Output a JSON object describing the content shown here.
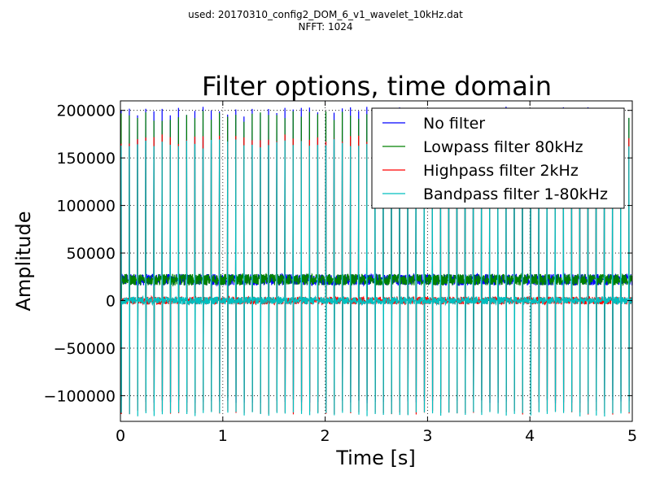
{
  "figure": {
    "suptitle_line1": "used: 20170310_config2_DOM_6_v1_wavelet_10kHz.dat",
    "suptitle_line2": "NFFT: 1024"
  },
  "chart_data": {
    "type": "line",
    "title": "Filter options, time domain",
    "xlabel": "Time [s]",
    "ylabel": "Amplitude",
    "xlim": [
      0,
      5
    ],
    "ylim": [
      -127000,
      210000
    ],
    "xticks": [
      0,
      1,
      2,
      3,
      4,
      5
    ],
    "xtick_labels": [
      "0",
      "1",
      "2",
      "3",
      "4",
      "5"
    ],
    "yticks": [
      200000,
      150000,
      100000,
      50000,
      0,
      -50000,
      -100000
    ],
    "ytick_labels": [
      "200000",
      "150000",
      "100000",
      "50000",
      "0",
      "−50000",
      "−100000"
    ],
    "grid": true,
    "legend_position": "top-right",
    "pulse_rate_hz": 12.5,
    "series": [
      {
        "name": "No filter",
        "color": "#0000ff",
        "baseline": 22000,
        "noise": 6000,
        "peak": 204000,
        "trough": -108000
      },
      {
        "name": "Lowpass filter 80kHz",
        "color": "#008000",
        "baseline": 22000,
        "noise": 6000,
        "peak": 200000,
        "trough": -105000
      },
      {
        "name": "Highpass filter 2kHz",
        "color": "#ff0000",
        "baseline": 0,
        "noise": 4000,
        "peak": 175000,
        "trough": -120000
      },
      {
        "name": "Bandpass filter 1-80kHz",
        "color": "#00bfbf",
        "baseline": 0,
        "noise": 4000,
        "peak": 170000,
        "trough": -122000
      }
    ]
  }
}
